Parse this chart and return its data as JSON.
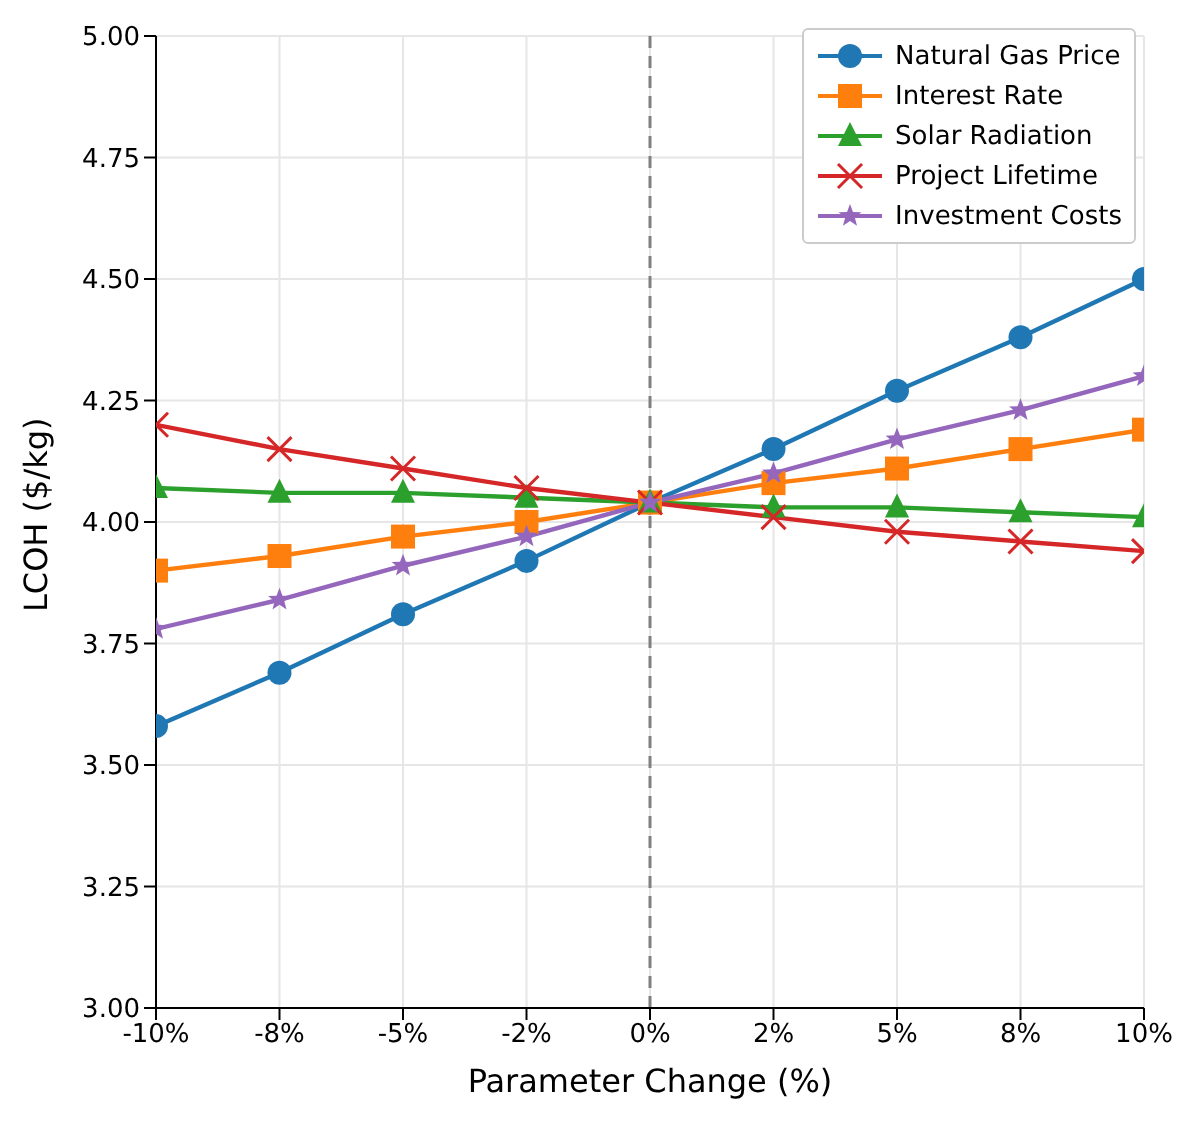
{
  "chart_data": {
    "type": "line",
    "xlabel": "Parameter Change (%)",
    "ylabel": "LCOH ($/kg)",
    "categories": [
      "-10%",
      "-8%",
      "-5%",
      "-2%",
      "0%",
      "2%",
      "5%",
      "8%",
      "10%"
    ],
    "series": [
      {
        "name": "Natural Gas Price",
        "color": "#1f77b4",
        "marker": "circle",
        "values": [
          3.58,
          3.69,
          3.81,
          3.92,
          4.04,
          4.15,
          4.27,
          4.38,
          4.5
        ]
      },
      {
        "name": "Interest Rate",
        "color": "#ff7f0e",
        "marker": "square",
        "values": [
          3.9,
          3.93,
          3.97,
          4.0,
          4.04,
          4.08,
          4.11,
          4.15,
          4.19
        ]
      },
      {
        "name": "Solar Radiation",
        "color": "#2ca02c",
        "marker": "triangle",
        "values": [
          4.07,
          4.06,
          4.06,
          4.05,
          4.04,
          4.03,
          4.03,
          4.02,
          4.01
        ]
      },
      {
        "name": "Project Lifetime",
        "color": "#d62728",
        "marker": "cross",
        "values": [
          4.2,
          4.15,
          4.11,
          4.07,
          4.04,
          4.01,
          3.98,
          3.96,
          3.94
        ]
      },
      {
        "name": "Investment Costs",
        "color": "#9467bd",
        "marker": "star",
        "values": [
          3.78,
          3.84,
          3.91,
          3.97,
          4.04,
          4.1,
          4.17,
          4.23,
          4.3
        ]
      }
    ],
    "ylim": [
      3.0,
      5.0
    ],
    "yticks": [
      {
        "value": 3,
        "label": "3.00"
      },
      {
        "value": 3.25,
        "label": "3.25"
      },
      {
        "value": 3.5,
        "label": "3.50"
      },
      {
        "value": 3.75,
        "label": "3.75"
      },
      {
        "value": 4,
        "label": "4.00"
      },
      {
        "value": 4.25,
        "label": "4.25"
      },
      {
        "value": 4.5,
        "label": "4.50"
      },
      {
        "value": 4.75,
        "label": "4.75"
      },
      {
        "value": 5,
        "label": "5.00"
      }
    ],
    "ref_lines": [
      {
        "axis": "x",
        "value": "0%",
        "color": "#808080",
        "line_style": "dashed"
      }
    ],
    "grid": true,
    "legend": "top right",
    "line_style": "solid"
  }
}
